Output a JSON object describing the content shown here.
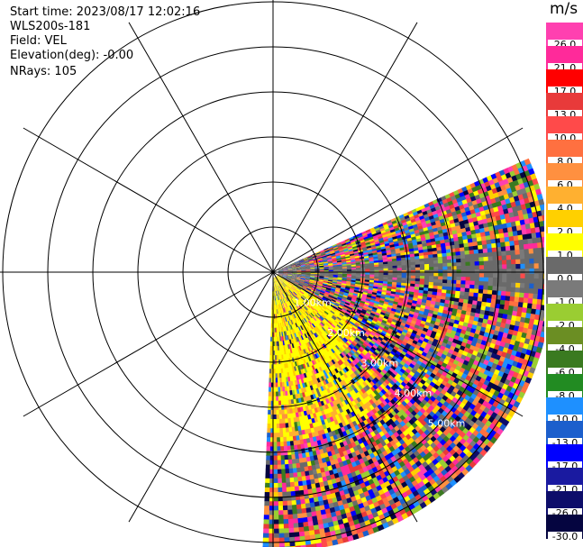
{
  "info": {
    "start_time": "Start time: 2023/08/17 12:02:16",
    "station": "WLS200s-181",
    "field": "Field: VEL",
    "elevation": "Elevation(deg): -0.00",
    "nrays": "NRays: 105"
  },
  "colorbar": {
    "unit": "m/s",
    "labels": [
      "26.0",
      "21.0",
      "17.0",
      "13.0",
      "10.0",
      "8.0",
      "6.0",
      "4.0",
      "2.0",
      "1.0",
      "0.0",
      "-1.0",
      "-2.0",
      "-4.0",
      "-6.0",
      "-8.0",
      "-10.0",
      "-13.0",
      "-17.0",
      "-21.0",
      "-26.0",
      "-30.0"
    ],
    "colors": [
      "#ff40b0",
      "#ff2a9a",
      "#ff0000",
      "#e83a3a",
      "#ff4a4a",
      "#ff7040",
      "#ff9040",
      "#ffb030",
      "#ffd000",
      "#ffff00",
      "#6a6a6a",
      "#7a7a7a",
      "#9acd32",
      "#6b8e23",
      "#3a7a20",
      "#228b22",
      "#1e90ff",
      "#1c5fcc",
      "#0000ff",
      "#1a1aa0",
      "#0d0d6a",
      "#050540"
    ]
  },
  "range_labels": [
    "1.00km",
    "2.00km",
    "3.00km",
    "4.00km",
    "5.00km"
  ]
}
